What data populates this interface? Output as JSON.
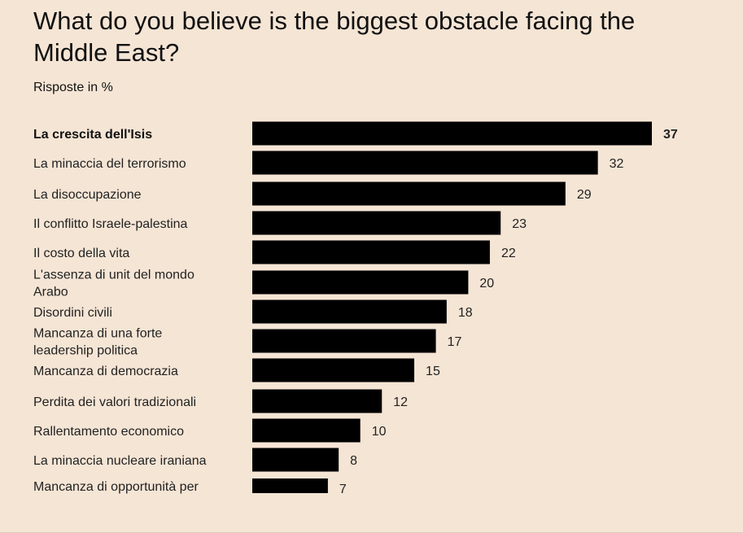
{
  "chart_data": {
    "type": "bar",
    "orientation": "horizontal",
    "title": "What do you believe is the biggest obstacle facing the Middle East?",
    "subtitle": "Risposte in %",
    "xlabel": "",
    "ylabel": "",
    "xlim": [
      0,
      37
    ],
    "categories": [
      [
        "La crescita dell'Isis"
      ],
      [
        "La minaccia del terrorismo"
      ],
      [
        "La disoccupazione"
      ],
      [
        "Il conflitto Israele-palestina"
      ],
      [
        "Il costo della vita"
      ],
      [
        "L'assenza di unit del mondo",
        "Arabo"
      ],
      [
        "Disordini civili"
      ],
      [
        "Mancanza di una forte",
        "leadership politica"
      ],
      [
        "Mancanza di democrazia"
      ],
      [
        "Perdita dei valori tradizionali"
      ],
      [
        "Rallentamento economico"
      ],
      [
        "La minaccia nucleare iraniana"
      ],
      [
        "Mancanza di opportunità per"
      ]
    ],
    "values": [
      37,
      32,
      29,
      23,
      22,
      20,
      18,
      17,
      15,
      12,
      10,
      8,
      7
    ],
    "highlight_index": 0,
    "bar_color": "#000000",
    "background_color": "#f5e5d5"
  }
}
